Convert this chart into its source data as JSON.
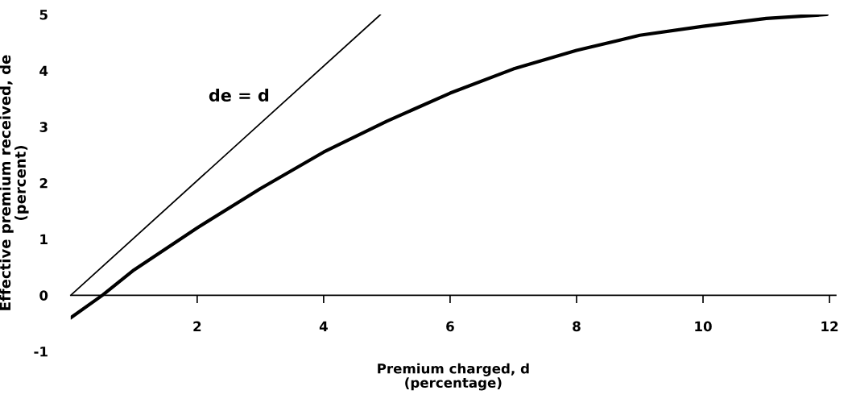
{
  "chart_data": {
    "type": "line",
    "xlabel": "Premium charged, d\n(percentage)",
    "ylabel": "Effective premium received, de\n(percent)",
    "series": [
      {
        "color": "#000000",
        "x": [
          0,
          4.9
        ],
        "values": [
          0,
          5.0
        ]
      },
      {
        "color": "#000000",
        "x": [
          0,
          0.5,
          1,
          2,
          3,
          4,
          5,
          6,
          7,
          8,
          9,
          10,
          11,
          11.96
        ],
        "values": [
          -0.4,
          0,
          0.45,
          1.2,
          1.9,
          2.55,
          3.1,
          3.6,
          4.03,
          4.36,
          4.63,
          4.79,
          4.93,
          5.0
        ]
      }
    ],
    "annotations": [
      "de = d"
    ],
    "xlim": [
      0,
      12.1
    ],
    "xticks": [
      2,
      4,
      6,
      8,
      10,
      12
    ],
    "ylim": [
      -1,
      5
    ],
    "yticks": [
      -1,
      0,
      1,
      2,
      3,
      4,
      5
    ],
    "grid": false,
    "legend": false,
    "marker": "none",
    "line_style": "solid"
  }
}
